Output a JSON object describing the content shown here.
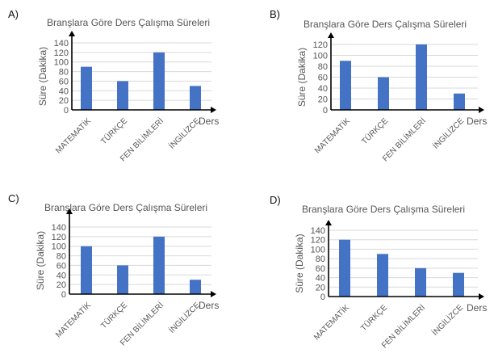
{
  "chart_data": [
    {
      "type": "bar",
      "option": "A)",
      "title": "Branşlara Göre Ders Çalışma Süreleri",
      "xlabel": "Ders",
      "ylabel": "Süre (Dakika)",
      "categories": [
        "MATEMATİK",
        "TÜRKÇE",
        "FEN BİLİMLERİ",
        "İNGİLİZCE"
      ],
      "values": [
        90,
        60,
        120,
        50
      ],
      "ylim": [
        0,
        140
      ],
      "yticks": [
        0,
        20,
        40,
        60,
        80,
        100,
        120,
        140
      ],
      "grid": true,
      "bar_color": "#4472c4"
    },
    {
      "type": "bar",
      "option": "B)",
      "title": "Branşlara Göre Ders Çalışma Süreleri",
      "xlabel": "Ders",
      "ylabel": "Süre (Dakika)",
      "categories": [
        "MATEMATİK",
        "TÜRKÇE",
        "FEN BİLİMLERİ",
        "İNGİLİZCE"
      ],
      "values": [
        90,
        60,
        120,
        30
      ],
      "ylim": [
        0,
        120
      ],
      "yticks": [
        0,
        20,
        40,
        60,
        80,
        100,
        120
      ],
      "grid": true,
      "bar_color": "#4472c4"
    },
    {
      "type": "bar",
      "option": "C)",
      "title": "Branşlara Göre Ders Çalışma Süreleri",
      "xlabel": "Ders",
      "ylabel": "Süre (Dakika)",
      "categories": [
        "MATEMATİK",
        "TÜRKÇE",
        "FEN BİLİMLERİ",
        "İNGİLİZCE"
      ],
      "values": [
        100,
        60,
        120,
        30
      ],
      "ylim": [
        0,
        140
      ],
      "yticks": [
        0,
        20,
        40,
        60,
        80,
        100,
        120,
        140
      ],
      "grid": true,
      "bar_color": "#4472c4"
    },
    {
      "type": "bar",
      "option": "D)",
      "title": "Branşlara Göre Ders Çalışma Süreleri",
      "xlabel": "Ders",
      "ylabel": "Süre (Dakika)",
      "categories": [
        "MATEMATİK",
        "TÜRKÇE",
        "FEN BİLİMLERİ",
        "İNGİLİZCE"
      ],
      "values": [
        120,
        90,
        60,
        50
      ],
      "ylim": [
        0,
        140
      ],
      "yticks": [
        0,
        20,
        40,
        60,
        80,
        100,
        120,
        140
      ],
      "grid": true,
      "bar_color": "#4472c4"
    }
  ]
}
